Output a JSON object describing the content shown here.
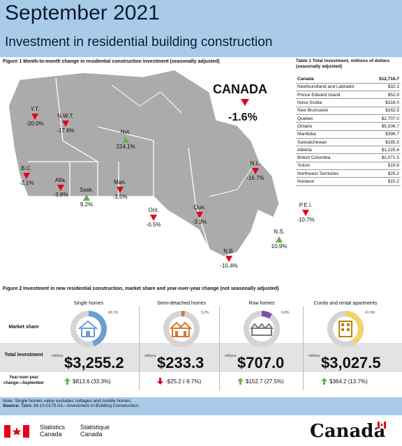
{
  "header": {
    "title": "September 2021",
    "subtitle": "Investment in residential building construction"
  },
  "figure1": {
    "caption": "Figure 1  Month-to-month change in residential construction investment (seasonally adjusted)"
  },
  "canada": {
    "label": "CANADA",
    "value": "-1.6%"
  },
  "map_labels": [
    {
      "name": "Y.T.",
      "value": "-20.0%",
      "dir": "down"
    },
    {
      "name": "N.W.T.",
      "value": "-17.6%",
      "dir": "down"
    },
    {
      "name": "Nvt.",
      "value": "224.1%",
      "dir": "up"
    },
    {
      "name": "B.C.",
      "value": "-2.1%",
      "dir": "down"
    },
    {
      "name": "Alta.",
      "value": "-3.8%",
      "dir": "down"
    },
    {
      "name": "Sask.",
      "value": "9.2%",
      "dir": "up"
    },
    {
      "name": "Man.",
      "value": "-3.5%",
      "dir": "down"
    },
    {
      "name": "Ont.",
      "value": "-0.5%",
      "dir": "down"
    },
    {
      "name": "Que.",
      "value": "-3.3%",
      "dir": "down"
    },
    {
      "name": "N.L.",
      "value": "-16.7%",
      "dir": "down"
    },
    {
      "name": "P.E.I.",
      "value": "-10.7%",
      "dir": "down"
    },
    {
      "name": "N.S.",
      "value": "10.9%",
      "dir": "up"
    },
    {
      "name": "N.B.",
      "value": "-10.4%",
      "dir": "down"
    }
  ],
  "table1": {
    "caption": "Table 1  Total investment, millions of dollars (seasonally adjusted)",
    "rows": [
      [
        "Canada",
        "$12,716.7"
      ],
      [
        "Newfoundland and Labrador",
        "$32.1"
      ],
      [
        "Prince Edward Island",
        "$52.9"
      ],
      [
        "Nova Scotia",
        "$316.0"
      ],
      [
        "New Brunswick",
        "$162.5"
      ],
      [
        "Quebec",
        "$2,707.0"
      ],
      [
        "Ontario",
        "$5,506.7"
      ],
      [
        "Manitoba",
        "$396.7"
      ],
      [
        "Saskatchewan",
        "$185.5"
      ],
      [
        "Alberta",
        "$1,225.8"
      ],
      [
        "British Columbia",
        "$2,071.5"
      ],
      [
        "Yukon",
        "$19.6"
      ],
      [
        "Northwest Territories",
        "$25.2"
      ],
      [
        "Nunavut",
        "$15.2"
      ]
    ]
  },
  "figure2": {
    "caption": "Figure 2  Investment in new residential construction, market share and year-over-year change (not seasonally adjusted)",
    "row_labels": {
      "share": "Market share",
      "total": "Total investment",
      "yoy": "Year-over-year change—September"
    },
    "millions": "millions",
    "columns": [
      {
        "label": "Single homes",
        "share": 45.1,
        "share_text": "45.1%",
        "color": "#6a9fd4",
        "icon": "house-icon",
        "total": "$3,255.2",
        "yoy": "$813.6 (33.3%)",
        "dir": "up"
      },
      {
        "label": "Semi-detached homes",
        "share": 3.2,
        "share_text": "3.2%",
        "color": "#d9772c",
        "icon": "semi-detached-icon",
        "total": "$233.3",
        "yoy": "-$25.2 (-9.7%)",
        "dir": "down"
      },
      {
        "label": "Row homes",
        "share": 9.8,
        "share_text": "9.8%",
        "color": "#7b4fa8",
        "icon": "row-homes-icon",
        "total": "$707.0",
        "yoy": "$152.7 (27.5%)",
        "dir": "up"
      },
      {
        "label": "Condo and rental apartments",
        "share": 41.9,
        "share_text": "41.9%",
        "color": "#f1d36a",
        "icon": "apartment-icon",
        "total": "$3,027.5",
        "yoy": "$364.2 (13.7%)",
        "dir": "up"
      }
    ]
  },
  "notes": {
    "note": "Note: Single homes value excludes cottages and mobile homes.",
    "source_label": "Source:",
    "source": "Table 34-10-0175-01—Investment in Building Construction."
  },
  "footer": {
    "stat_en_1": "Statistics",
    "stat_en_2": "Canada",
    "stat_fr_1": "Statistique",
    "stat_fr_2": "Canada",
    "wordmark": "Canada"
  }
}
